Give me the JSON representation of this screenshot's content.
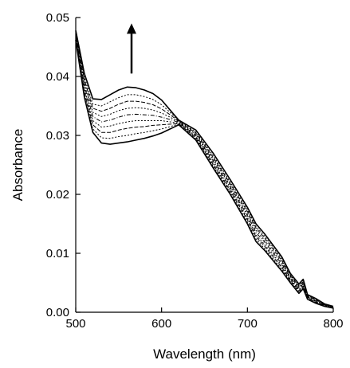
{
  "chart_data": {
    "type": "line",
    "xlabel": "Wavelength (nm)",
    "ylabel": "Absorbance",
    "xlim": [
      500,
      800
    ],
    "ylim": [
      0.0,
      0.05
    ],
    "x_ticks": [
      500,
      600,
      700,
      800
    ],
    "x_tick_labels": [
      "500",
      "600",
      "700",
      "800"
    ],
    "y_ticks": [
      0.0,
      0.01,
      0.02,
      0.03,
      0.04,
      0.05
    ],
    "y_tick_labels": [
      "0.00",
      "0.01",
      "0.02",
      "0.03",
      "0.04",
      "0.05"
    ],
    "grid": false,
    "legend": "none",
    "annotation": "upward arrow near 565 nm indicating absorbance increase",
    "series": [
      {
        "x": [
          500,
          510,
          520,
          530,
          540,
          550,
          560,
          570,
          580,
          590,
          600,
          610,
          620,
          640,
          660,
          680,
          700,
          710,
          720,
          740,
          750,
          760,
          765,
          770,
          780,
          790,
          800
        ],
        "values": [
          0.0462,
          0.0365,
          0.0305,
          0.0287,
          0.0285,
          0.0287,
          0.0289,
          0.0292,
          0.0295,
          0.0299,
          0.0304,
          0.0311,
          0.0318,
          0.0292,
          0.0245,
          0.02,
          0.015,
          0.012,
          0.0105,
          0.007,
          0.005,
          0.0032,
          0.004,
          0.0022,
          0.0015,
          0.001,
          0.0007
        ]
      },
      {
        "x": [
          500,
          510,
          520,
          530,
          540,
          550,
          560,
          570,
          580,
          590,
          600,
          610,
          620,
          640,
          660,
          680,
          700,
          710,
          720,
          740,
          750,
          760,
          765,
          770,
          780,
          790,
          800
        ],
        "values": [
          0.0464,
          0.0369,
          0.0311,
          0.0296,
          0.0295,
          0.0298,
          0.03,
          0.0303,
          0.0305,
          0.0308,
          0.0311,
          0.0315,
          0.0319,
          0.0294,
          0.0248,
          0.0203,
          0.0153,
          0.0124,
          0.0108,
          0.0073,
          0.0052,
          0.0034,
          0.0042,
          0.0023,
          0.0016,
          0.001,
          0.0007
        ]
      },
      {
        "x": [
          500,
          510,
          520,
          530,
          540,
          550,
          560,
          570,
          580,
          590,
          600,
          610,
          620,
          640,
          660,
          680,
          700,
          710,
          720,
          740,
          750,
          760,
          765,
          770,
          780,
          790,
          800
        ],
        "values": [
          0.0466,
          0.0374,
          0.0318,
          0.0305,
          0.0305,
          0.0309,
          0.0312,
          0.0314,
          0.0315,
          0.0317,
          0.0318,
          0.0319,
          0.032,
          0.0296,
          0.0251,
          0.0206,
          0.0157,
          0.0128,
          0.0112,
          0.0076,
          0.0054,
          0.0036,
          0.0044,
          0.0024,
          0.0017,
          0.0011,
          0.0007
        ]
      },
      {
        "x": [
          500,
          510,
          520,
          530,
          540,
          550,
          560,
          570,
          580,
          590,
          600,
          610,
          620,
          640,
          660,
          680,
          700,
          710,
          720,
          740,
          750,
          760,
          765,
          770,
          780,
          790,
          800
        ],
        "values": [
          0.0468,
          0.0379,
          0.0325,
          0.0314,
          0.0316,
          0.032,
          0.0323,
          0.0325,
          0.0325,
          0.0325,
          0.0325,
          0.0323,
          0.0321,
          0.0298,
          0.0254,
          0.0209,
          0.016,
          0.0131,
          0.0115,
          0.0079,
          0.0056,
          0.0038,
          0.0046,
          0.0025,
          0.0018,
          0.0011,
          0.0008
        ]
      },
      {
        "x": [
          500,
          510,
          520,
          530,
          540,
          550,
          560,
          570,
          580,
          590,
          600,
          610,
          620,
          640,
          660,
          680,
          700,
          710,
          720,
          740,
          750,
          760,
          765,
          770,
          780,
          790,
          800
        ],
        "values": [
          0.047,
          0.0384,
          0.0332,
          0.0323,
          0.0326,
          0.0331,
          0.0335,
          0.0336,
          0.0335,
          0.0334,
          0.0331,
          0.0327,
          0.0322,
          0.03,
          0.0257,
          0.0212,
          0.0164,
          0.0135,
          0.0119,
          0.0082,
          0.0058,
          0.004,
          0.0048,
          0.0026,
          0.0019,
          0.0012,
          0.0008
        ]
      },
      {
        "x": [
          500,
          510,
          520,
          530,
          540,
          550,
          560,
          570,
          580,
          590,
          600,
          610,
          620,
          640,
          660,
          680,
          700,
          710,
          720,
          740,
          750,
          760,
          765,
          770,
          780,
          790,
          800
        ],
        "values": [
          0.0472,
          0.0389,
          0.0339,
          0.0332,
          0.0336,
          0.0342,
          0.0346,
          0.0347,
          0.0346,
          0.0343,
          0.0338,
          0.0331,
          0.0323,
          0.0302,
          0.026,
          0.0215,
          0.0167,
          0.0139,
          0.0122,
          0.0085,
          0.006,
          0.0042,
          0.005,
          0.0027,
          0.002,
          0.0012,
          0.0008
        ]
      },
      {
        "x": [
          500,
          510,
          520,
          530,
          540,
          550,
          560,
          570,
          580,
          590,
          600,
          610,
          620,
          640,
          660,
          680,
          700,
          710,
          720,
          740,
          750,
          760,
          765,
          770,
          780,
          790,
          800
        ],
        "values": [
          0.0474,
          0.0394,
          0.0346,
          0.0341,
          0.0346,
          0.0353,
          0.0358,
          0.0358,
          0.0356,
          0.0352,
          0.0345,
          0.0335,
          0.0324,
          0.0304,
          0.0263,
          0.0218,
          0.0171,
          0.0143,
          0.0126,
          0.0088,
          0.0062,
          0.0044,
          0.0052,
          0.0028,
          0.0021,
          0.0013,
          0.0009
        ]
      },
      {
        "x": [
          500,
          510,
          520,
          530,
          540,
          550,
          560,
          570,
          580,
          590,
          600,
          610,
          620,
          640,
          660,
          680,
          700,
          710,
          720,
          740,
          750,
          760,
          765,
          770,
          780,
          790,
          800
        ],
        "values": [
          0.0476,
          0.0399,
          0.0353,
          0.035,
          0.0357,
          0.0364,
          0.0369,
          0.0369,
          0.0366,
          0.0361,
          0.0352,
          0.0339,
          0.0325,
          0.0306,
          0.0266,
          0.0221,
          0.0174,
          0.0146,
          0.0129,
          0.0091,
          0.0064,
          0.0046,
          0.0054,
          0.0029,
          0.0022,
          0.0013,
          0.0009
        ]
      },
      {
        "x": [
          500,
          510,
          520,
          530,
          540,
          550,
          560,
          570,
          580,
          590,
          600,
          610,
          620,
          640,
          660,
          680,
          700,
          710,
          720,
          740,
          750,
          760,
          765,
          770,
          780,
          790,
          800
        ],
        "values": [
          0.0478,
          0.0405,
          0.0362,
          0.0361,
          0.0369,
          0.0377,
          0.0382,
          0.0381,
          0.0377,
          0.0371,
          0.036,
          0.0343,
          0.0326,
          0.0309,
          0.027,
          0.0225,
          0.0178,
          0.015,
          0.0133,
          0.0094,
          0.0066,
          0.0048,
          0.0056,
          0.003,
          0.0023,
          0.0014,
          0.001
        ]
      }
    ]
  }
}
